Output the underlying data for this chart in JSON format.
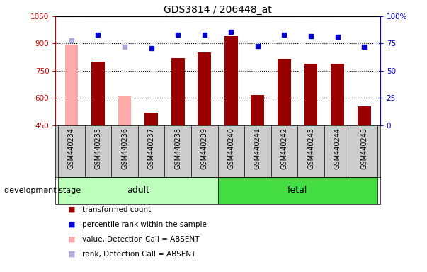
{
  "title": "GDS3814 / 206448_at",
  "categories": [
    "GSM440234",
    "GSM440235",
    "GSM440236",
    "GSM440237",
    "GSM440238",
    "GSM440239",
    "GSM440240",
    "GSM440241",
    "GSM440242",
    "GSM440243",
    "GSM440244",
    "GSM440245"
  ],
  "bar_values": [
    895,
    800,
    608,
    520,
    820,
    850,
    940,
    615,
    815,
    790,
    790,
    555
  ],
  "bar_absent": [
    true,
    false,
    true,
    false,
    false,
    false,
    false,
    false,
    false,
    false,
    false,
    false
  ],
  "rank_values": [
    78,
    83,
    72,
    71,
    83,
    83,
    86,
    73,
    83,
    82,
    81,
    72
  ],
  "rank_absent": [
    true,
    false,
    true,
    false,
    false,
    false,
    false,
    false,
    false,
    false,
    false,
    false
  ],
  "ylim_left": [
    450,
    1050
  ],
  "ylim_right": [
    0,
    100
  ],
  "yticks_left": [
    450,
    600,
    750,
    900,
    1050
  ],
  "yticks_right": [
    0,
    25,
    50,
    75,
    100
  ],
  "left_axis_color": "#cc0000",
  "right_axis_color": "#0000cc",
  "bar_color_present": "#990000",
  "bar_color_absent": "#ffaaaa",
  "dot_color_present": "#0000cc",
  "dot_color_absent": "#aaaadd",
  "adult_label": "adult",
  "fetal_label": "fetal",
  "adult_indices": [
    0,
    1,
    2,
    3,
    4,
    5
  ],
  "fetal_indices": [
    6,
    7,
    8,
    9,
    10,
    11
  ],
  "adult_color": "#bbffbb",
  "fetal_color": "#44dd44",
  "stage_label": "development stage",
  "legend_entries": [
    {
      "label": "transformed count",
      "color": "#990000"
    },
    {
      "label": "percentile rank within the sample",
      "color": "#0000cc"
    },
    {
      "label": "value, Detection Call = ABSENT",
      "color": "#ffaaaa"
    },
    {
      "label": "rank, Detection Call = ABSENT",
      "color": "#aaaadd"
    }
  ],
  "background_color": "#ffffff",
  "tick_area_color": "#cccccc",
  "bar_width": 0.5
}
